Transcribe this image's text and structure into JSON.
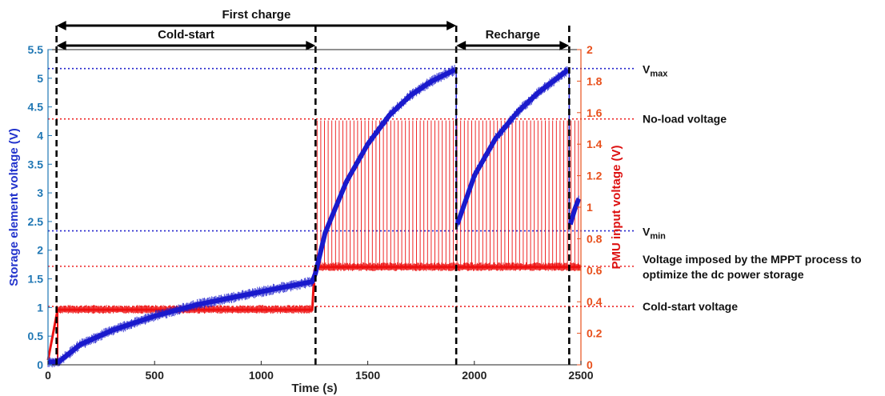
{
  "chart_data": {
    "type": "line",
    "xlabel": "Time (s)",
    "ylabel_left": "Storage element voltage (V)",
    "ylabel_right": "PMU input voltage (V)",
    "xlim": [
      0,
      2500
    ],
    "ylim_left": [
      0,
      5.5
    ],
    "ylim_right": [
      0,
      2
    ],
    "x_ticks": [
      "0",
      "500",
      "1000",
      "1500",
      "2000",
      "2500"
    ],
    "y_left_ticks": [
      "0",
      "0.5",
      "1",
      "1.5",
      "2",
      "2.5",
      "3",
      "3.5",
      "4",
      "4.5",
      "5",
      "5.5"
    ],
    "y_right_ticks": [
      "0",
      "0.2",
      "0.4",
      "0.6",
      "0.8",
      "1",
      "1.2",
      "1.4",
      "1.6",
      "1.8",
      "2"
    ],
    "grid": false,
    "colors": {
      "storage": "#1a1acc",
      "pmu": "#ee1111",
      "left_axis": "#1f77b4",
      "right_axis": "#e8501c"
    },
    "series": [
      {
        "axis": "left",
        "x": [
          0,
          40,
          50,
          150,
          300,
          500,
          700,
          900,
          1100,
          1240,
          1255,
          1300,
          1400,
          1500,
          1600,
          1700,
          1800,
          1910,
          1920,
          2000,
          2100,
          2200,
          2300,
          2440,
          2450,
          2470,
          2490
        ],
        "y": [
          0.05,
          0.05,
          0.05,
          0.35,
          0.6,
          0.85,
          1.05,
          1.2,
          1.35,
          1.45,
          1.6,
          2.3,
          3.2,
          3.85,
          4.35,
          4.7,
          4.95,
          5.15,
          2.45,
          3.3,
          3.95,
          4.4,
          4.75,
          5.15,
          2.45,
          2.7,
          2.9
        ]
      },
      {
        "axis": "right",
        "x": [
          0,
          45,
          1240,
          1250,
          1255,
          2500
        ],
        "y": [
          0.03,
          0.35,
          0.35,
          0.6,
          0.62,
          0.62
        ],
        "pulse_peak": 1.55,
        "pulse_interval": [
          1255,
          2500
        ]
      }
    ],
    "reference_lines": [
      {
        "axis": "right",
        "value": 1.88,
        "style": "dotted",
        "color": "#2222cc",
        "label": "V",
        "subscript": "max"
      },
      {
        "axis": "right",
        "value": 1.56,
        "style": "dotted",
        "color": "#ee2222",
        "label": "No-load voltage"
      },
      {
        "axis": "right",
        "value": 0.85,
        "style": "dotted",
        "color": "#2222cc",
        "label": "V",
        "subscript": "min"
      },
      {
        "axis": "right",
        "value": 0.625,
        "style": "dotted",
        "color": "#ee2222",
        "label": [
          "Voltage imposed by the MPPT process to",
          "optimize the dc power storage"
        ]
      },
      {
        "axis": "right",
        "value": 0.37,
        "style": "dotted",
        "color": "#ee2222",
        "label": "Cold-start voltage"
      }
    ],
    "vertical_markers": [
      40,
      1255,
      1915,
      2445
    ],
    "phases": [
      {
        "label": "First charge",
        "x_start": 40,
        "x_end": 1915,
        "level": 1
      },
      {
        "label": "Cold-start",
        "x_start": 40,
        "x_end": 1255,
        "level": 2
      },
      {
        "label": "Recharge",
        "x_start": 1915,
        "x_end": 2445,
        "level": 2
      }
    ]
  }
}
